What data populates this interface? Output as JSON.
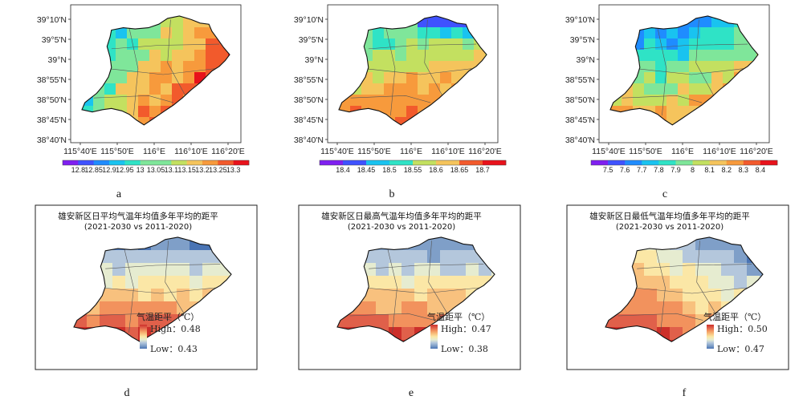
{
  "top_panels": [
    {
      "letter": "a",
      "lat_ticks": [
        "39°10'N",
        "39°5'N",
        "39°N",
        "38°55'N",
        "38°50'N",
        "38°45'N",
        "38°40'N"
      ],
      "lon_ticks": [
        "115°40'E",
        "115°50'E",
        "116°E",
        "116°10'E",
        "116°20'E"
      ],
      "colorbar_ticks": [
        "12.8",
        "12.85",
        "12.9",
        "12.95",
        "13",
        "13.05",
        "13.1",
        "13.15",
        "13.2",
        "13.25",
        "13.3"
      ]
    },
    {
      "letter": "b",
      "lat_ticks": [
        "39°10'N",
        "39°5'N",
        "39°N",
        "38°55'N",
        "38°50'N",
        "38°45'N",
        "38°40'N"
      ],
      "lon_ticks": [
        "115°40'E",
        "115°50'E",
        "116°E",
        "116°10'E",
        "116°20'E"
      ],
      "colorbar_ticks": [
        "18.4",
        "18.45",
        "18.5",
        "18.55",
        "18.6",
        "18.65",
        "18.7"
      ]
    },
    {
      "letter": "c",
      "lat_ticks": [
        "39°10'N",
        "39°5'N",
        "39°N",
        "38°55'N",
        "38°50'N",
        "38°45'N",
        "38°40'N"
      ],
      "lon_ticks": [
        "115°40'E",
        "115°50'E",
        "116°E",
        "116°10'E",
        "116°20'E"
      ],
      "colorbar_ticks": [
        "7.5",
        "7.6",
        "7.7",
        "7.8",
        "7.9",
        "8",
        "8.1",
        "8.2",
        "8.3",
        "8.4"
      ]
    }
  ],
  "bottom_panels": [
    {
      "letter": "d",
      "title": "雄安新区日平均气温年均值多年平均的距平",
      "subtitle": "(2021-2030 vs 2011-2020)",
      "legend_title": "气温距平（℃）",
      "high_label": "High：0.48",
      "low_label": "Low：0.43"
    },
    {
      "letter": "e",
      "title": "雄安新区日最高气温年均值多年平均的距平",
      "subtitle": "(2021-2030 vs 2011-2020)",
      "legend_title": "气温距平（℃）",
      "high_label": "High：0.47",
      "low_label": "Low：0.38"
    },
    {
      "letter": "f",
      "title": "雄安新区日最低气温年均值多年平均的距平",
      "subtitle": "(2021-2030 vs 2011-2020)",
      "legend_title": "气温距平（℃）",
      "high_label": "High：0.50",
      "low_label": "Low：0.47"
    }
  ],
  "colors": {
    "rainbow": [
      "#7f1ff0",
      "#3f52ff",
      "#1f8cff",
      "#19c3f0",
      "#2fe3c6",
      "#7fe69a",
      "#c3e060",
      "#f5c45c",
      "#f79a3c",
      "#f25a2c",
      "#e8121b"
    ],
    "diverging": [
      "#4a74b4",
      "#7f9fc8",
      "#b4c7dc",
      "#e6ecd0",
      "#fbe7a6",
      "#f8c17e",
      "#f2925d",
      "#e0604a",
      "#cc2f2a"
    ]
  }
}
